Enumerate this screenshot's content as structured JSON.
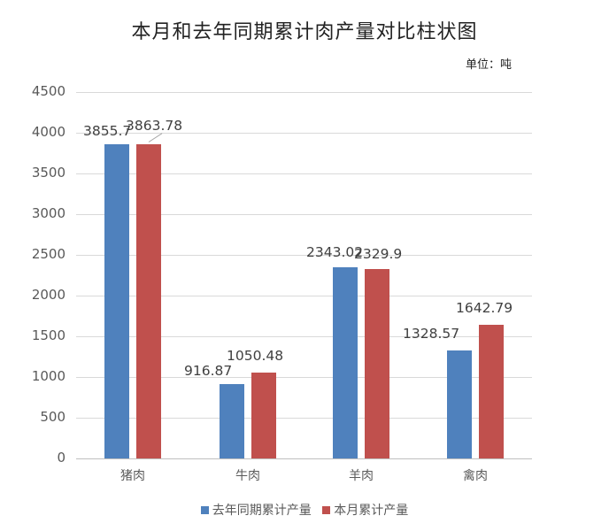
{
  "title": "本月和去年同期累计肉产量对比柱状图",
  "unit": "单位：吨",
  "chart_data": {
    "type": "bar",
    "title": "本月和去年同期累计肉产量对比柱状图",
    "unit_label": "单位：吨",
    "categories": [
      "猪肉",
      "牛肉",
      "羊肉",
      "禽肉"
    ],
    "series": [
      {
        "name": "去年同期累计产量",
        "color": "#4f81bd",
        "values": [
          3855.7,
          916.87,
          2343.02,
          1328.57
        ]
      },
      {
        "name": "本月累计产量",
        "color": "#c0504d",
        "values": [
          3863.78,
          1050.48,
          2329.9,
          1642.79
        ]
      }
    ],
    "data_labels": [
      [
        "3855.7",
        "916.87",
        "2343.02",
        "1328.57"
      ],
      [
        "3863.78",
        "1050.48",
        "2329.9",
        "1642.79"
      ]
    ],
    "xlabel": "",
    "ylabel": "",
    "ylim": [
      0,
      4500
    ],
    "yticks": [
      "0",
      "500",
      "1000",
      "1500",
      "2000",
      "2500",
      "3000",
      "3500",
      "4000",
      "4500"
    ],
    "grid": true,
    "legend_position": "bottom"
  }
}
